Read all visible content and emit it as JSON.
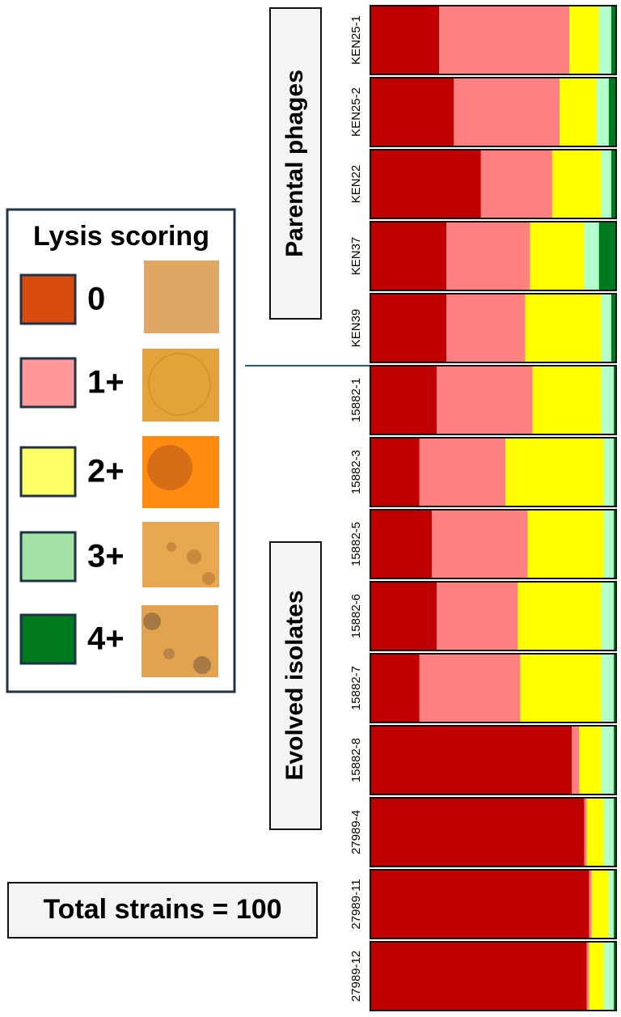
{
  "chart_data": {
    "type": "stacked-bar-horizontal",
    "legend_title": "Lysis scoring",
    "annotations": [
      "Parental phages",
      "Evolved isolates",
      "Total strains = 100"
    ],
    "categories": [
      "KEN25-1",
      "KEN25-2",
      "KEN22",
      "KEN37",
      "KEN39",
      "15882-1",
      "15882-3",
      "15882-5",
      "15882-6",
      "15882-7",
      "15882-8",
      "27989-4",
      "27989-11",
      "27989-12"
    ],
    "xlim": [
      0,
      100
    ],
    "series": [
      {
        "name": "0",
        "color": "#c00000",
        "legend_color": "#d94b0f",
        "values": [
          28,
          34,
          45,
          31,
          31,
          27,
          20,
          25,
          27,
          20,
          82,
          87,
          89,
          88
        ]
      },
      {
        "name": "1+",
        "color": "#ff8080",
        "legend_color": "#ff9999",
        "values": [
          53,
          43,
          29,
          34,
          32,
          39,
          35,
          39,
          33,
          41,
          3,
          1,
          1,
          1
        ]
      },
      {
        "name": "2+",
        "color": "#ffff00",
        "legend_color": "#ffff66",
        "values": [
          12,
          15,
          20,
          22,
          31,
          28,
          40,
          31,
          34,
          33,
          9,
          7,
          7,
          6
        ]
      },
      {
        "name": "3+",
        "color": "#b3ffcc",
        "legend_color": "#a3e0a3",
        "values": [
          5,
          5,
          4,
          6,
          4,
          5,
          4,
          4,
          5,
          5,
          5,
          4,
          2,
          4
        ]
      },
      {
        "name": "4+",
        "color": "#007a1f",
        "legend_color": "#007a1f",
        "values": [
          2,
          3,
          2,
          7,
          2,
          1,
          1,
          1,
          1,
          1,
          1,
          1,
          1,
          1
        ]
      }
    ]
  }
}
